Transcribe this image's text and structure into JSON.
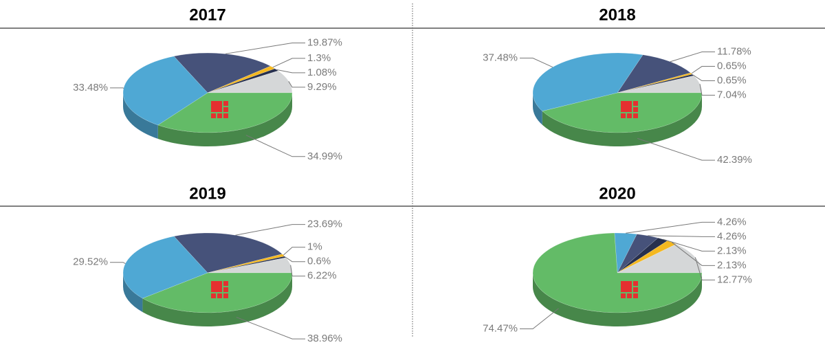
{
  "chart_data": [
    {
      "type": "pie",
      "title": "2017",
      "values": [
        19.87,
        1.3,
        1.08,
        9.29,
        34.99,
        33.48
      ],
      "value_labels": [
        "19.87%",
        "1.3%",
        "1.08%",
        "9.29%",
        "34.99%",
        "33.48%"
      ],
      "colors": [
        "#46527a",
        "#f4b820",
        "#27304e",
        "#d5d7d8",
        "#63bb67",
        "#4fa8d4"
      ]
    },
    {
      "type": "pie",
      "title": "2018",
      "values": [
        11.78,
        0.65,
        0.65,
        7.04,
        42.39,
        37.48
      ],
      "value_labels": [
        "11.78%",
        "0.65%",
        "0.65%",
        "7.04%",
        "42.39%",
        "37.48%"
      ],
      "colors": [
        "#46527a",
        "#f4b820",
        "#27304e",
        "#d5d7d8",
        "#63bb67",
        "#4fa8d4"
      ]
    },
    {
      "type": "pie",
      "title": "2019",
      "values": [
        23.69,
        1,
        0.6,
        6.22,
        38.96,
        29.52
      ],
      "value_labels": [
        "23.69%",
        "1%",
        "0.6%",
        "6.22%",
        "38.96%",
        "29.52%"
      ],
      "colors": [
        "#46527a",
        "#f4b820",
        "#27304e",
        "#d5d7d8",
        "#63bb67",
        "#4fa8d4"
      ]
    },
    {
      "type": "pie",
      "title": "2020",
      "values": [
        4.26,
        4.26,
        2.13,
        2.13,
        12.77,
        74.47
      ],
      "value_labels": [
        "4.26%",
        "4.26%",
        "2.13%",
        "2.13%",
        "12.77%",
        "74.47%"
      ],
      "colors": [
        "#4fa8d4",
        "#46527a",
        "#27304e",
        "#f4b820",
        "#d5d7d8",
        "#63bb67"
      ]
    }
  ]
}
